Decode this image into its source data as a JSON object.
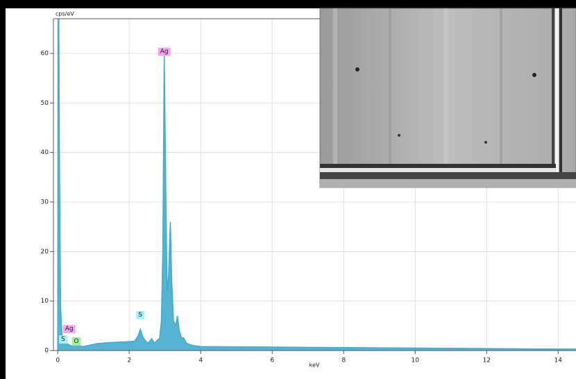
{
  "chart_data": {
    "type": "area",
    "y_axis_label": "cps/eV",
    "x_axis_label": "keV",
    "xlim": [
      -0.12,
      14.5
    ],
    "ylim": [
      0,
      67
    ],
    "xticks": [
      0,
      2,
      4,
      6,
      8,
      10,
      12,
      14
    ],
    "yticks": [
      0,
      10,
      20,
      30,
      40,
      50,
      60
    ],
    "grid": true,
    "series": [
      {
        "color": "#45abcd",
        "x": [
          0,
          0.01,
          0.03,
          0.05,
          0.08,
          0.12,
          0.18,
          0.25,
          0.3,
          0.4,
          0.5,
          0.55,
          0.7,
          0.9,
          1.1,
          1.4,
          1.7,
          2.0,
          2.15,
          2.25,
          2.31,
          2.38,
          2.5,
          2.58,
          2.63,
          2.7,
          2.85,
          2.9,
          2.94,
          2.98,
          3.02,
          3.06,
          3.1,
          3.15,
          3.19,
          3.24,
          3.3,
          3.35,
          3.4,
          3.47,
          3.52,
          3.6,
          3.7,
          3.8,
          4.0,
          5,
          6,
          7,
          8,
          9,
          10,
          11,
          12,
          13,
          14,
          14.5
        ],
        "values": [
          0,
          67,
          67,
          37,
          9,
          3,
          1.8,
          1.5,
          1.2,
          0.9,
          1.3,
          1.0,
          0.8,
          1.1,
          1.4,
          1.6,
          1.7,
          1.8,
          1.9,
          3.0,
          4.3,
          2.8,
          1.5,
          1.9,
          2.4,
          1.5,
          2.5,
          6,
          20,
          60,
          35,
          12,
          15,
          26,
          14,
          6,
          5,
          7,
          4,
          2.5,
          2.6,
          1.5,
          1.2,
          1.0,
          0.8,
          0.75,
          0.7,
          0.65,
          0.6,
          0.55,
          0.5,
          0.45,
          0.4,
          0.35,
          0.3,
          0.3
        ]
      }
    ],
    "annotations": [
      {
        "text": "Ag",
        "x": 2.98,
        "y": 60.4,
        "color": "#f3a6ef"
      },
      {
        "text": "S",
        "x": 2.31,
        "y": 7.2,
        "color": "#a6f1f3"
      },
      {
        "text": "Ag",
        "x": 0.32,
        "y": 4.4,
        "color": "#f3a6ef"
      },
      {
        "text": "S",
        "x": 0.15,
        "y": 2.3,
        "color": "#a6f1f3"
      },
      {
        "text": "O",
        "x": 0.52,
        "y": 1.9,
        "color": "#9ff29f"
      }
    ]
  }
}
